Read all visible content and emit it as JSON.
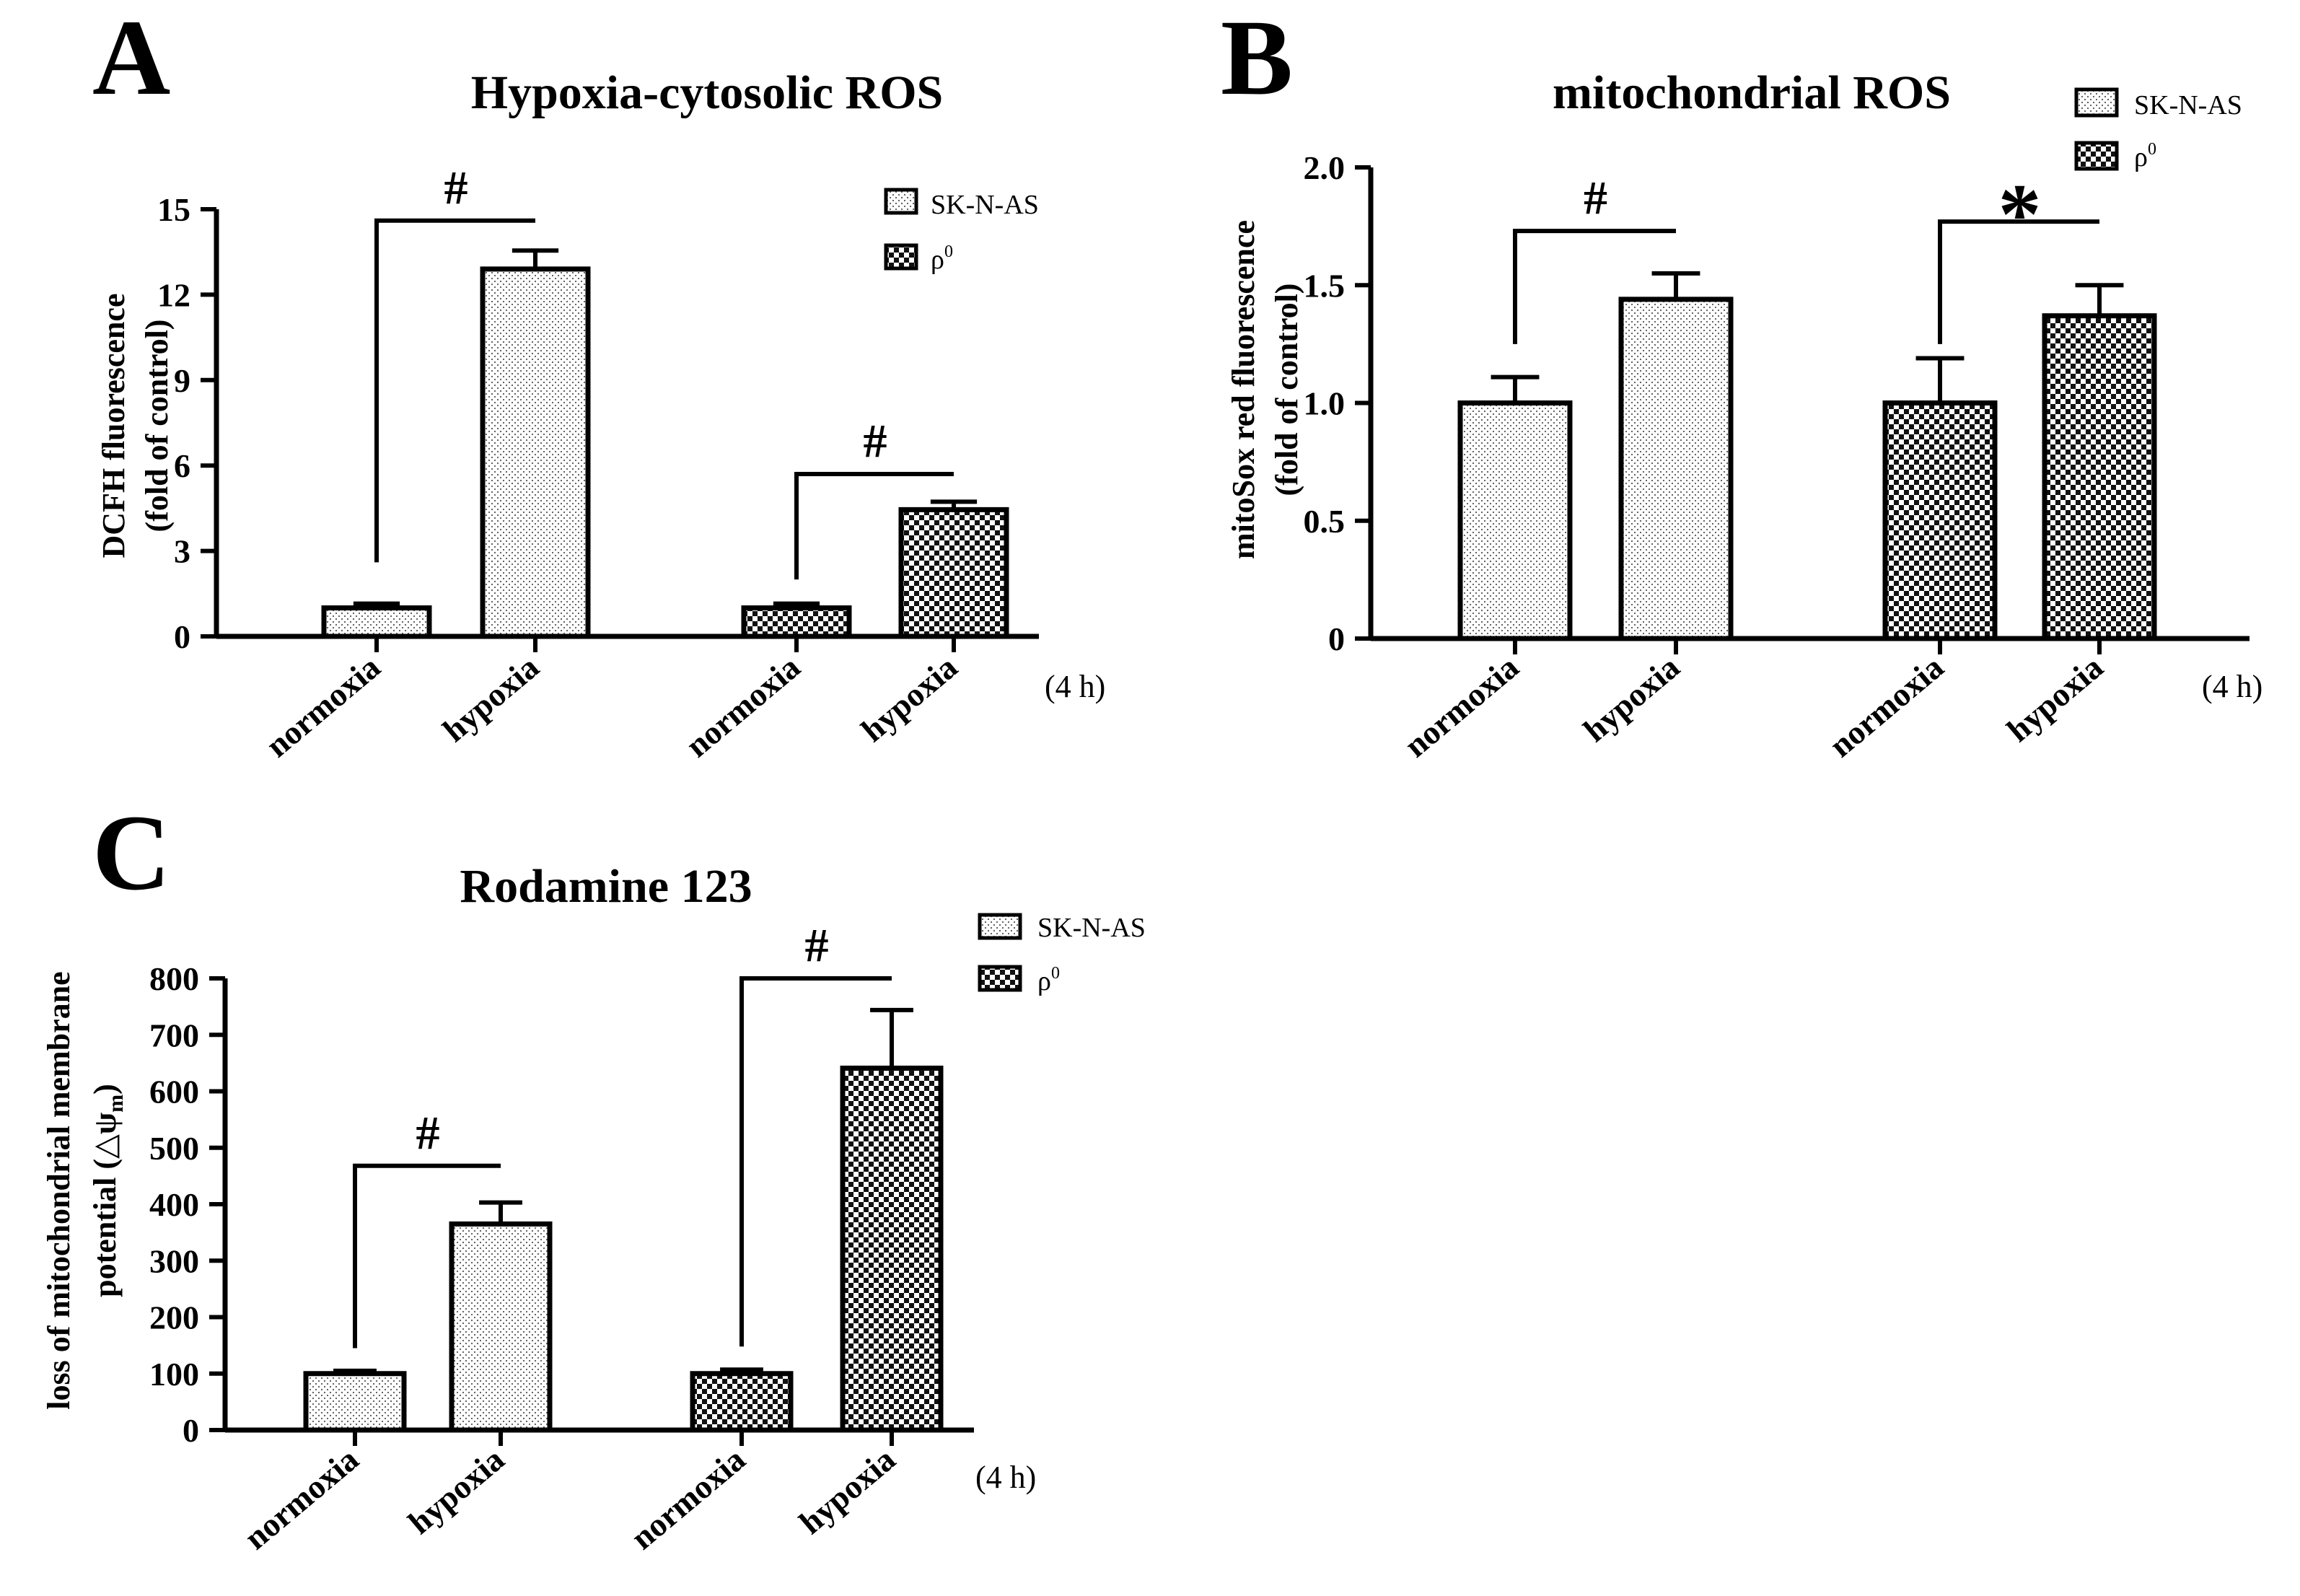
{
  "legend": {
    "sk_label": "SK-N-AS",
    "rho_base": "ρ",
    "rho_sup": "0"
  },
  "chart_data": [
    {
      "panel_label": "A",
      "type": "bar",
      "title": "Hypoxia-cytosolic ROS",
      "ylabel_line1": "DCFH fluorescence",
      "ylabel_line2": "(fold of control)",
      "ylim": [
        0,
        15
      ],
      "yticks": [
        0,
        3,
        6,
        9,
        12,
        15
      ],
      "time_label": "(4 h)",
      "bars": [
        {
          "label": "normoxia",
          "value": 1.0,
          "error": 0.15,
          "pattern": "dots"
        },
        {
          "label": "hypoxia",
          "value": 12.9,
          "error": 0.65,
          "pattern": "dots"
        },
        {
          "label": "normoxia",
          "value": 1.0,
          "error": 0.15,
          "pattern": "checker"
        },
        {
          "label": "hypoxia",
          "value": 4.45,
          "error": 0.28,
          "pattern": "checker"
        }
      ],
      "annotations": [
        {
          "symbol": "#",
          "from": 0,
          "to": 1,
          "y": 14.6,
          "drop_to": 2.6
        },
        {
          "symbol": "#",
          "from": 2,
          "to": 3,
          "y": 5.7,
          "drop_to": 2.0
        }
      ]
    },
    {
      "panel_label": "B",
      "type": "bar",
      "title": "mitochondrial ROS",
      "ylabel_line1": "mitoSox red fluorescence",
      "ylabel_line2": "(fold of control)",
      "ylim": [
        0,
        2.0
      ],
      "yticks": [
        0,
        0.5,
        1.0,
        1.5,
        2.0
      ],
      "ytick_labels": [
        "0",
        "0.5",
        "1.0",
        "1.5",
        "2.0"
      ],
      "time_label": "(4 h)",
      "bars": [
        {
          "label": "normoxia",
          "value": 1.0,
          "error": 0.11,
          "pattern": "dots"
        },
        {
          "label": "hypoxia",
          "value": 1.44,
          "error": 0.11,
          "pattern": "dots"
        },
        {
          "label": "normoxia",
          "value": 1.0,
          "error": 0.19,
          "pattern": "checker"
        },
        {
          "label": "hypoxia",
          "value": 1.37,
          "error": 0.13,
          "pattern": "checker"
        }
      ],
      "annotations": [
        {
          "symbol": "#",
          "from": 0,
          "to": 1,
          "y": 1.73,
          "drop_to": 1.25
        },
        {
          "symbol": "*",
          "from": 2,
          "to": 3,
          "y": 1.77,
          "drop_to": 1.25
        }
      ]
    },
    {
      "panel_label": "C",
      "type": "bar",
      "title": "Rodamine 123",
      "ylabel_line1": "loss of mitochondrial membrane",
      "ylabel_line2_prefix": "potential (",
      "ylabel_line2_symbol": "△ψ",
      "ylabel_line2_sub": "m",
      "ylabel_line2_suffix": ")",
      "ylim": [
        0,
        800
      ],
      "yticks": [
        0,
        100,
        200,
        300,
        400,
        500,
        600,
        700,
        800
      ],
      "time_label": "(4 h)",
      "bars": [
        {
          "label": "normoxia",
          "value": 100,
          "error": 5,
          "pattern": "dots"
        },
        {
          "label": "hypoxia",
          "value": 365,
          "error": 38,
          "pattern": "dots"
        },
        {
          "label": "normoxia",
          "value": 100,
          "error": 7,
          "pattern": "checker"
        },
        {
          "label": "hypoxia",
          "value": 641,
          "error": 103,
          "pattern": "checker"
        }
      ],
      "annotations": [
        {
          "symbol": "#",
          "from": 0,
          "to": 1,
          "y": 468,
          "drop_to": 145
        },
        {
          "symbol": "#",
          "from": 2,
          "to": 3,
          "y": 800,
          "drop_to": 148
        }
      ]
    }
  ]
}
